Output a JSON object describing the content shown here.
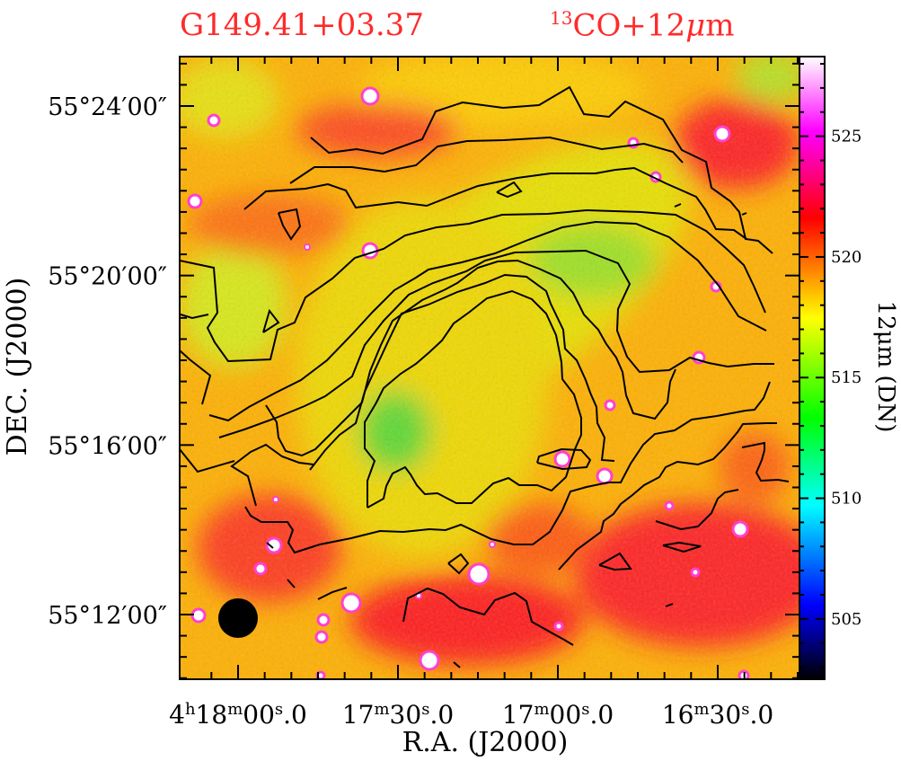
{
  "chart_data": {
    "type": "heatmap",
    "title_left": "G149.41+03.37",
    "title_right_sup": "13",
    "title_right_main": "CO+12",
    "title_right_mu": "μ",
    "title_right_unit": "m",
    "xlabel": "R.A.  (J2000)",
    "ylabel": "DEC.  (J2000)",
    "colorbar_label": "12μm (DN)",
    "x_ticks": [
      {
        "h": "4",
        "hs": "h",
        "m": "18",
        "ms": "m",
        "s": "00",
        "ss": "s",
        "f": ".0"
      },
      {
        "h": "",
        "hs": "",
        "m": "17",
        "ms": "m",
        "s": "30",
        "ss": "s",
        "f": ".0"
      },
      {
        "h": "",
        "hs": "",
        "m": "17",
        "ms": "m",
        "s": "00",
        "ss": "s",
        "f": ".0"
      },
      {
        "h": "",
        "hs": "",
        "m": "16",
        "ms": "m",
        "s": "30",
        "ss": "s",
        "f": ".0"
      }
    ],
    "x_tick_ra_seconds": [
      0,
      30,
      60,
      90
    ],
    "y_ticks": [
      "55°24′00″",
      "55°20′00″",
      "55°16′00″",
      "55°12′00″"
    ],
    "y_tick_dec_arcmin": [
      24,
      20,
      16,
      12
    ],
    "colorbar_ticks": [
      "525",
      "520",
      "515",
      "510",
      "505"
    ],
    "colorbar_values": [
      525,
      520,
      515,
      510,
      505
    ],
    "colorbar_range": [
      502.5,
      528.3
    ],
    "colormap": [
      "#000000",
      "#0000ff",
      "#00ffff",
      "#00ff00",
      "#ffff00",
      "#ff0000",
      "#ff00ff",
      "#ffffff"
    ],
    "contour_color": "#000000",
    "beam": "filled circle, lower-left"
  }
}
